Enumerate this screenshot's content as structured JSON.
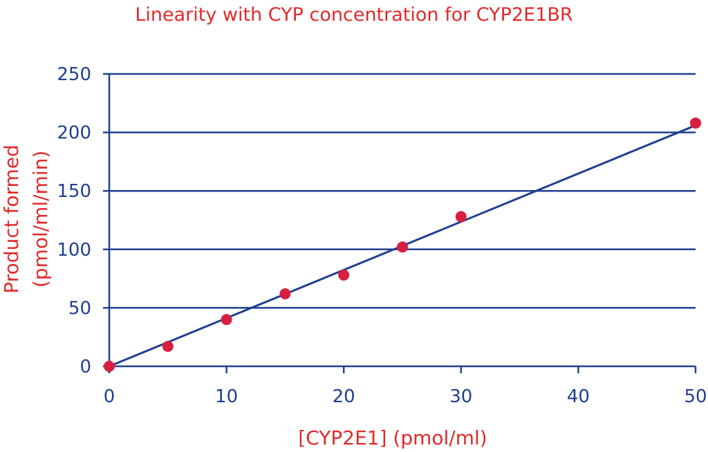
{
  "colors": {
    "title": "#e02a2a",
    "axis_text": "#1f3f8f",
    "axis_line": "#1f3f8f",
    "grid": "#1f3f8f",
    "fit_line": "#1f3f8f",
    "points": "#d81f3f"
  },
  "chart_data": {
    "type": "scatter",
    "title": "Linearity with CYP concentration for CYP2E1BR",
    "xlabel": "[CYP2E1] (pmol/ml)",
    "ylabel_lines": [
      "Product formed",
      "(pmol/ml/min)"
    ],
    "xlim": [
      0,
      50
    ],
    "ylim": [
      0,
      250
    ],
    "x_ticks": [
      0,
      10,
      20,
      30,
      40,
      50
    ],
    "y_ticks": [
      0,
      50,
      100,
      150,
      200,
      250
    ],
    "grid": {
      "horizontal": true,
      "vertical": false
    },
    "series": [
      {
        "points": [
          {
            "x": 0,
            "y": 0
          },
          {
            "x": 5,
            "y": 17
          },
          {
            "x": 10,
            "y": 40
          },
          {
            "x": 15,
            "y": 62
          },
          {
            "x": 20,
            "y": 78
          },
          {
            "x": 25,
            "y": 102
          },
          {
            "x": 30,
            "y": 128
          },
          {
            "x": 50,
            "y": 208
          }
        ]
      }
    ],
    "fit_line": {
      "from": [
        0,
        0
      ],
      "to": [
        50,
        206
      ]
    }
  }
}
